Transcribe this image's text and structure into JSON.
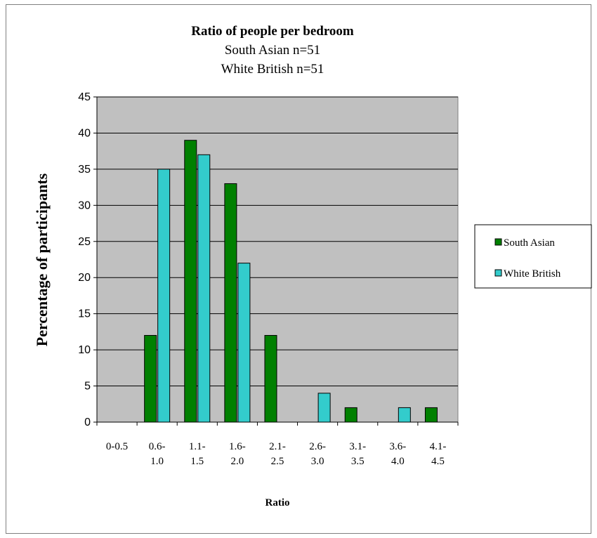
{
  "chart_data": {
    "type": "bar",
    "title": "Ratio of people per bedroom",
    "subtitles": [
      "South Asian  n=51",
      "White British n=51"
    ],
    "xlabel": "Ratio",
    "ylabel": "Percentage of participants",
    "ylim": [
      0,
      45
    ],
    "yticks": [
      "0",
      "5",
      "10",
      "15",
      "20",
      "25",
      "30",
      "35",
      "40",
      "45"
    ],
    "categories": [
      [
        "0-0.5"
      ],
      [
        "0.6-",
        "1.0"
      ],
      [
        "1.1-",
        "1.5"
      ],
      [
        "1.6-",
        "2.0"
      ],
      [
        "2.1-",
        "2.5"
      ],
      [
        "2.6-",
        "3.0"
      ],
      [
        "3.1-",
        "3.5"
      ],
      [
        "3.6-",
        "4.0"
      ],
      [
        "4.1-",
        "4.5"
      ]
    ],
    "series": [
      {
        "name": "South Asian",
        "color": "#008000",
        "values": [
          0,
          12,
          39,
          33,
          12,
          0,
          2,
          0,
          2
        ]
      },
      {
        "name": "White British",
        "color": "#33CCCC",
        "values": [
          0,
          35,
          37,
          22,
          0,
          4,
          0,
          2,
          0
        ]
      }
    ],
    "grid": true,
    "plot_background": "#C0C0C0",
    "legend_position": "right"
  }
}
